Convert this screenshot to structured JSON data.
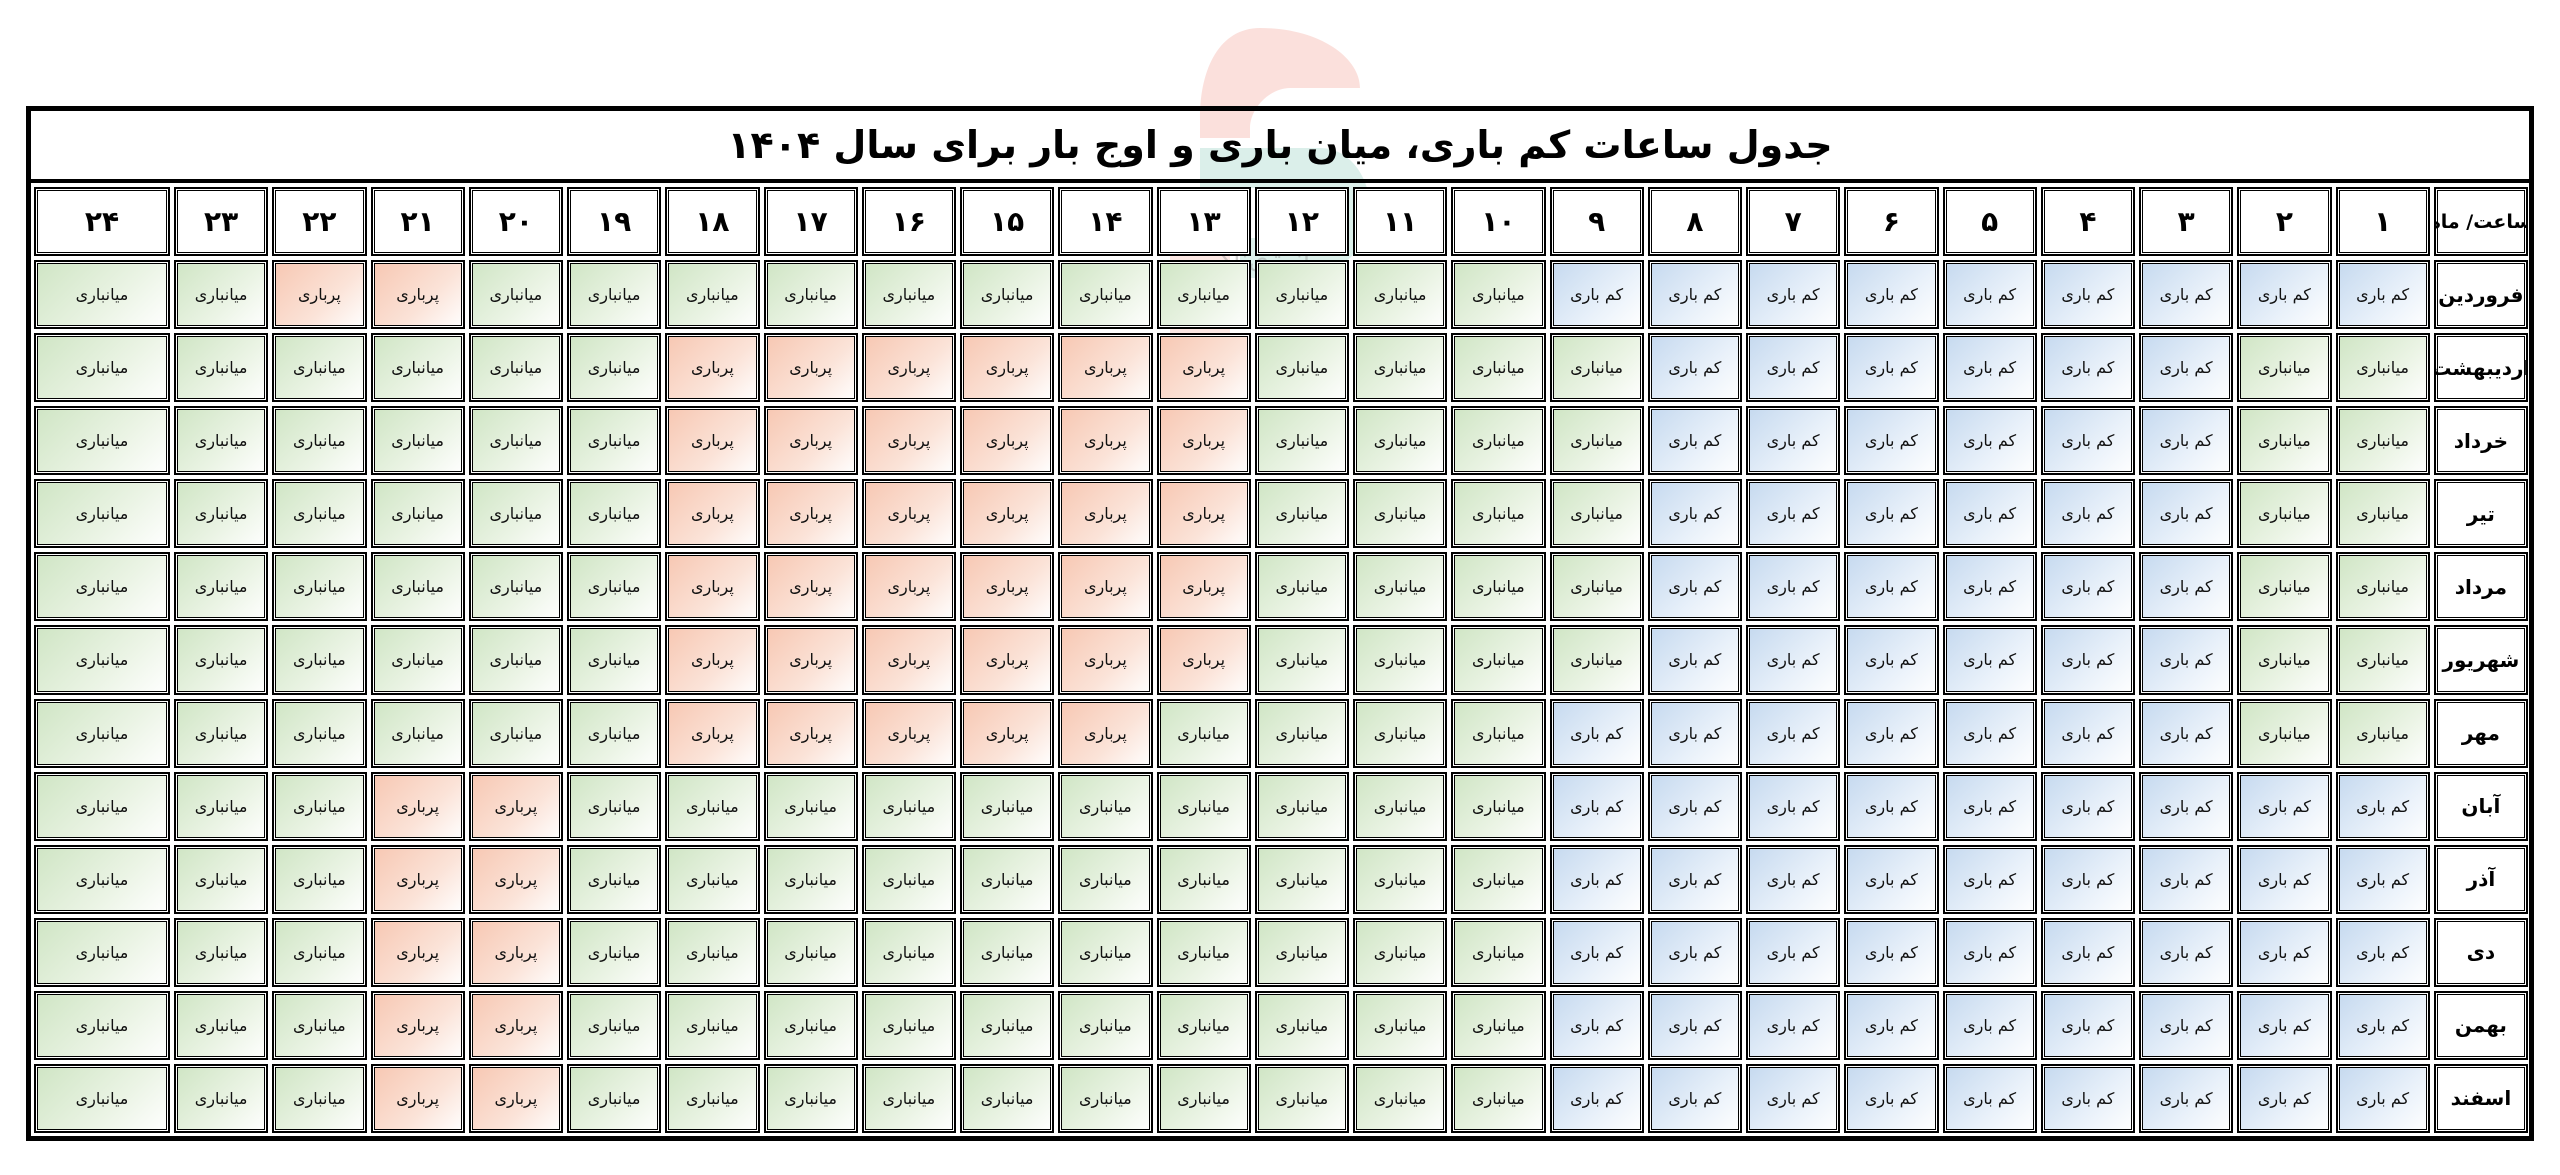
{
  "title": "جدول ساعات کم باری، میان باری و اوج بار برای سال ۱۴۰۴",
  "corner_label": "ساعت/ ماه",
  "hours": [
    "۱",
    "۲",
    "۳",
    "۴",
    "۵",
    "۶",
    "۷",
    "۸",
    "۹",
    "۱۰",
    "۱۱",
    "۱۲",
    "۱۳",
    "۱۴",
    "۱۵",
    "۱۶",
    "۱۷",
    "۱۸",
    "۱۹",
    "۲۰",
    "۲۱",
    "۲۲",
    "۲۳",
    "۲۴"
  ],
  "level_labels": {
    "low": "کم باری",
    "mid": "میانباری",
    "peak": "پرباری"
  },
  "level_colors": {
    "low": "#c5d9ef",
    "mid": "#cfe5c4",
    "peak": "#f7c7b2"
  },
  "watermark_text": "انرژی‌ناک",
  "rows": [
    {
      "month": "فروردین",
      "cells": [
        "low",
        "low",
        "low",
        "low",
        "low",
        "low",
        "low",
        "low",
        "low",
        "mid",
        "mid",
        "mid",
        "mid",
        "mid",
        "mid",
        "mid",
        "mid",
        "mid",
        "mid",
        "mid",
        "peak",
        "peak",
        "mid",
        "mid"
      ]
    },
    {
      "month": "اردیبهشت",
      "cells": [
        "mid",
        "mid",
        "low",
        "low",
        "low",
        "low",
        "low",
        "low",
        "mid",
        "mid",
        "mid",
        "mid",
        "peak",
        "peak",
        "peak",
        "peak",
        "peak",
        "peak",
        "mid",
        "mid",
        "mid",
        "mid",
        "mid",
        "mid"
      ]
    },
    {
      "month": "خرداد",
      "cells": [
        "mid",
        "mid",
        "low",
        "low",
        "low",
        "low",
        "low",
        "low",
        "mid",
        "mid",
        "mid",
        "mid",
        "peak",
        "peak",
        "peak",
        "peak",
        "peak",
        "peak",
        "mid",
        "mid",
        "mid",
        "mid",
        "mid",
        "mid"
      ]
    },
    {
      "month": "تیر",
      "cells": [
        "mid",
        "mid",
        "low",
        "low",
        "low",
        "low",
        "low",
        "low",
        "mid",
        "mid",
        "mid",
        "mid",
        "peak",
        "peak",
        "peak",
        "peak",
        "peak",
        "peak",
        "mid",
        "mid",
        "mid",
        "mid",
        "mid",
        "mid"
      ]
    },
    {
      "month": "مرداد",
      "cells": [
        "mid",
        "mid",
        "low",
        "low",
        "low",
        "low",
        "low",
        "low",
        "mid",
        "mid",
        "mid",
        "mid",
        "peak",
        "peak",
        "peak",
        "peak",
        "peak",
        "peak",
        "mid",
        "mid",
        "mid",
        "mid",
        "mid",
        "mid"
      ]
    },
    {
      "month": "شهریور",
      "cells": [
        "mid",
        "mid",
        "low",
        "low",
        "low",
        "low",
        "low",
        "low",
        "mid",
        "mid",
        "mid",
        "mid",
        "peak",
        "peak",
        "peak",
        "peak",
        "peak",
        "peak",
        "mid",
        "mid",
        "mid",
        "mid",
        "mid",
        "mid"
      ]
    },
    {
      "month": "مهر",
      "cells": [
        "mid",
        "mid",
        "low",
        "low",
        "low",
        "low",
        "low",
        "low",
        "low",
        "mid",
        "mid",
        "mid",
        "mid",
        "peak",
        "peak",
        "peak",
        "peak",
        "peak",
        "mid",
        "mid",
        "mid",
        "mid",
        "mid",
        "mid"
      ]
    },
    {
      "month": "آبان",
      "cells": [
        "low",
        "low",
        "low",
        "low",
        "low",
        "low",
        "low",
        "low",
        "low",
        "mid",
        "mid",
        "mid",
        "mid",
        "mid",
        "mid",
        "mid",
        "mid",
        "mid",
        "mid",
        "peak",
        "peak",
        "mid",
        "mid",
        "mid"
      ]
    },
    {
      "month": "آذر",
      "cells": [
        "low",
        "low",
        "low",
        "low",
        "low",
        "low",
        "low",
        "low",
        "low",
        "mid",
        "mid",
        "mid",
        "mid",
        "mid",
        "mid",
        "mid",
        "mid",
        "mid",
        "mid",
        "peak",
        "peak",
        "mid",
        "mid",
        "mid"
      ]
    },
    {
      "month": "دی",
      "cells": [
        "low",
        "low",
        "low",
        "low",
        "low",
        "low",
        "low",
        "low",
        "low",
        "mid",
        "mid",
        "mid",
        "mid",
        "mid",
        "mid",
        "mid",
        "mid",
        "mid",
        "mid",
        "peak",
        "peak",
        "mid",
        "mid",
        "mid"
      ]
    },
    {
      "month": "بهمن",
      "cells": [
        "low",
        "low",
        "low",
        "low",
        "low",
        "low",
        "low",
        "low",
        "low",
        "mid",
        "mid",
        "mid",
        "mid",
        "mid",
        "mid",
        "mid",
        "mid",
        "mid",
        "mid",
        "peak",
        "peak",
        "mid",
        "mid",
        "mid"
      ]
    },
    {
      "month": "اسفند",
      "cells": [
        "low",
        "low",
        "low",
        "low",
        "low",
        "low",
        "low",
        "low",
        "low",
        "mid",
        "mid",
        "mid",
        "mid",
        "mid",
        "mid",
        "mid",
        "mid",
        "mid",
        "mid",
        "peak",
        "peak",
        "mid",
        "mid",
        "mid"
      ]
    }
  ]
}
